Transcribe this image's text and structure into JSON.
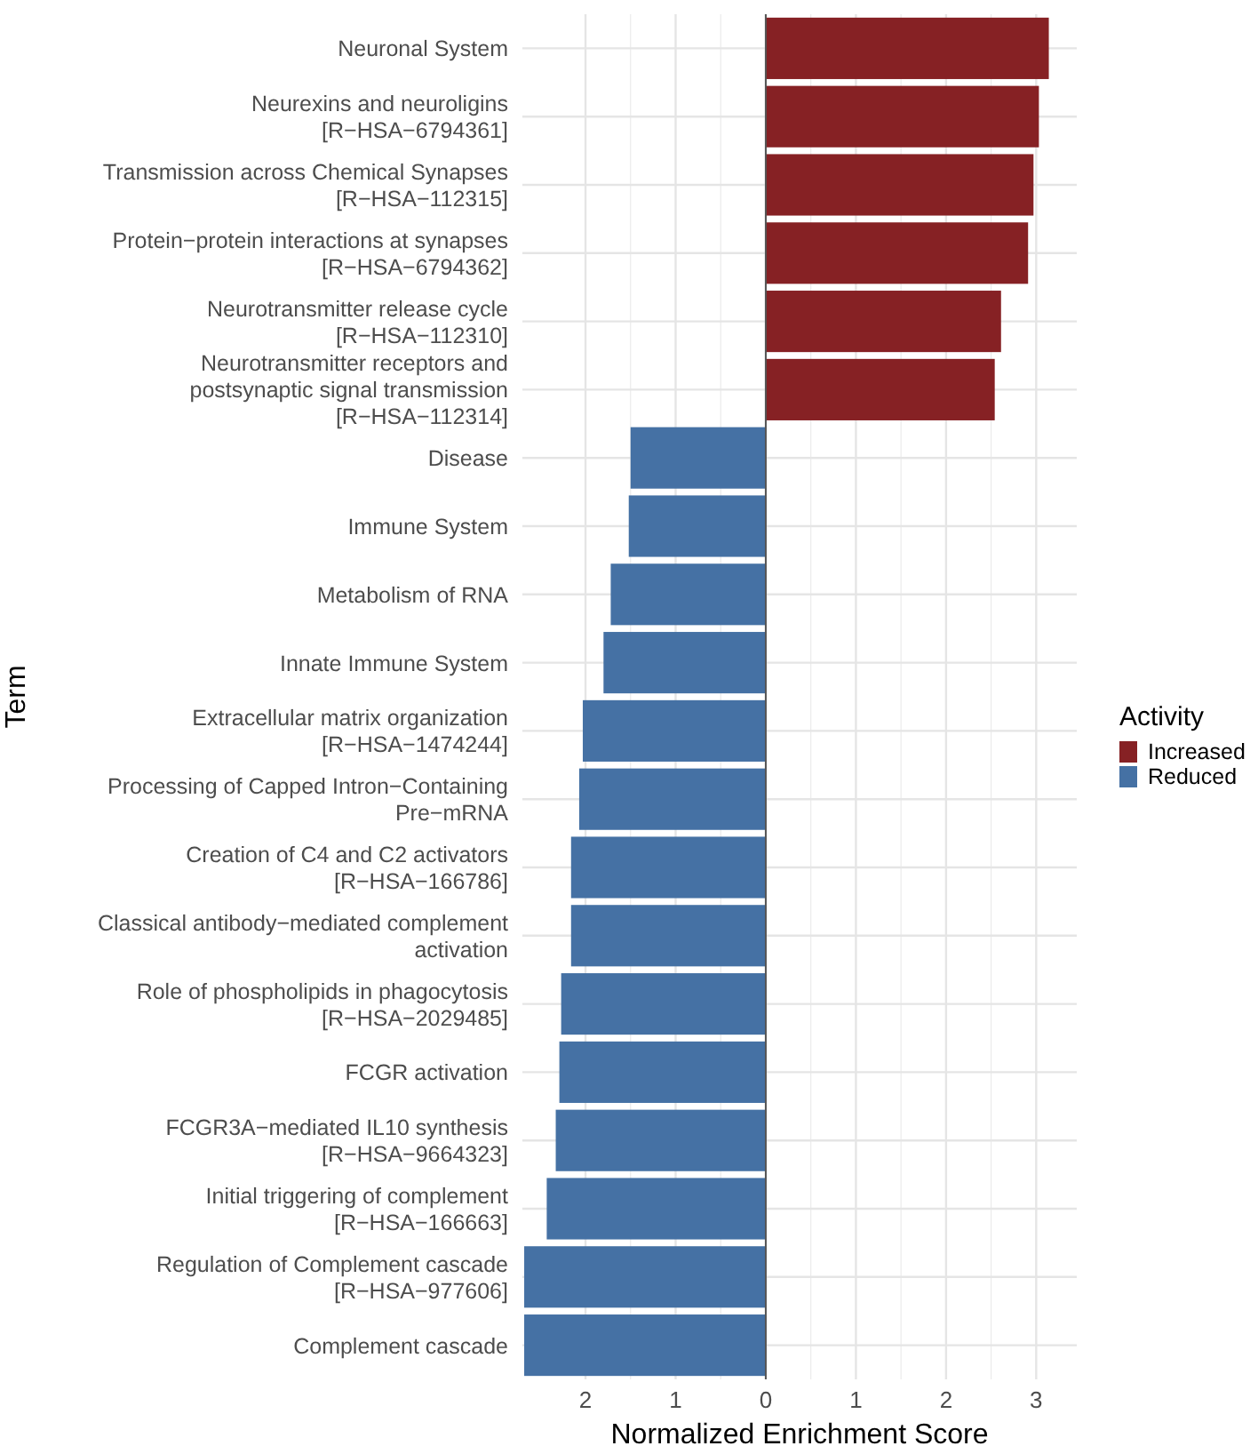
{
  "chart_data": {
    "type": "bar",
    "orientation": "horizontal",
    "xlabel": "Normalized Enrichment Score",
    "ylabel": "Term",
    "legend_title": "Activity",
    "legend": "right",
    "grid": true,
    "categories": [
      "Neuronal System",
      "Neurexins and neuroligins\n[R−HSA−6794361]",
      "Transmission across Chemical Synapses\n[R−HSA−112315]",
      "Protein−protein interactions at synapses\n[R−HSA−6794362]",
      "Neurotransmitter release cycle\n[R−HSA−112310]",
      "Neurotransmitter receptors and\npostsynaptic signal transmission\n[R−HSA−112314]",
      "Disease",
      "Immune System",
      "Metabolism of RNA",
      "Innate Immune System",
      "Extracellular matrix organization\n[R−HSA−1474244]",
      "Processing of Capped Intron−Containing\nPre−mRNA",
      "Creation of C4 and C2 activators\n[R−HSA−166786]",
      "Classical antibody−mediated complement\nactivation",
      "Role of phospholipids in phagocytosis\n[R−HSA−2029485]",
      "FCGR activation",
      "FCGR3A−mediated IL10 synthesis\n[R−HSA−9664323]",
      "Initial triggering of complement\n[R−HSA−166663]",
      "Regulation of Complement cascade\n[R−HSA−977606]",
      "Complement cascade"
    ],
    "series": [
      {
        "name": "Increased",
        "color": "#862124",
        "values": [
          3.14,
          3.03,
          2.97,
          2.91,
          2.61,
          2.54,
          null,
          null,
          null,
          null,
          null,
          null,
          null,
          null,
          null,
          null,
          null,
          null,
          null,
          null
        ]
      },
      {
        "name": "Reduced",
        "color": "#4571a4",
        "values": [
          null,
          null,
          null,
          null,
          null,
          null,
          -1.5,
          -1.52,
          -1.72,
          -1.8,
          -2.03,
          -2.07,
          -2.16,
          -2.16,
          -2.27,
          -2.29,
          -2.33,
          -2.43,
          -2.68,
          -2.68
        ]
      }
    ],
    "xlim": [
      -2.7,
      3.45
    ],
    "xticks": [
      {
        "value": -2,
        "label": "2"
      },
      {
        "value": -1,
        "label": "1"
      },
      0,
      1,
      2,
      3
    ],
    "ref_lines": [
      {
        "axis": "x",
        "value": 0,
        "color": "#555555"
      }
    ]
  }
}
